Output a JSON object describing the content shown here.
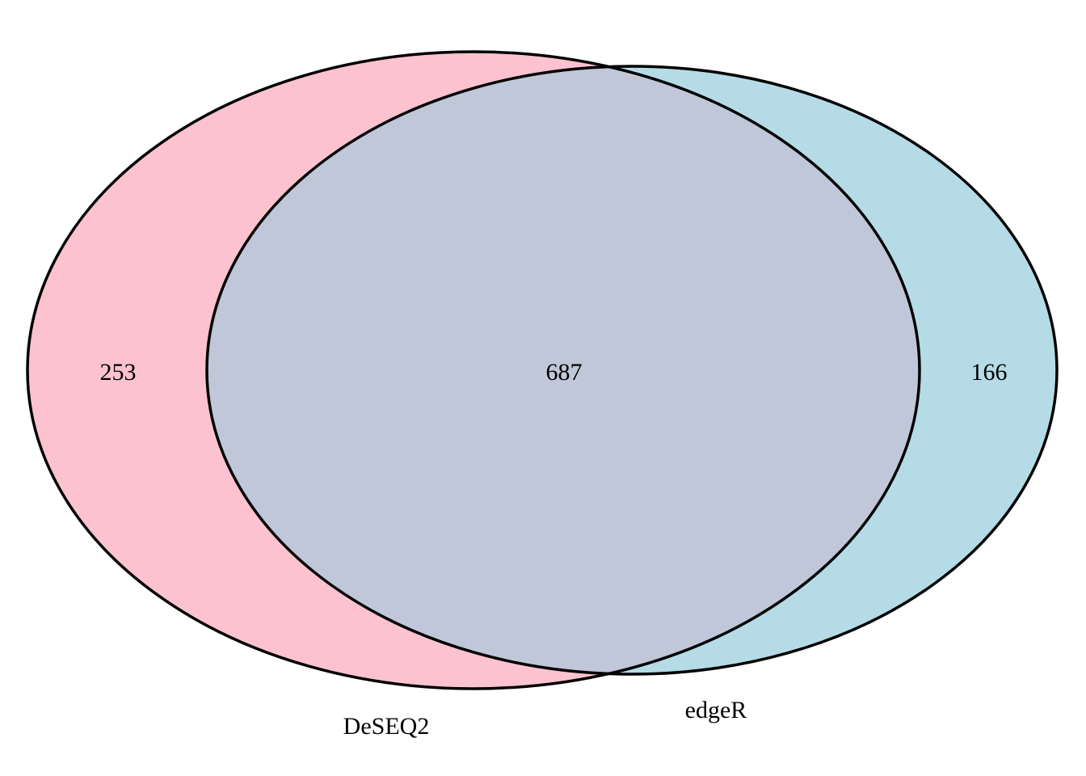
{
  "diagram": {
    "type": "venn",
    "sets": [
      {
        "name": "DeSEQ2",
        "color": "#FCC2CF"
      },
      {
        "name": "edgeR",
        "color": "#B5DBE6"
      }
    ],
    "overlap_color": "#C0C7D8",
    "outline_color": "#000000",
    "regions": {
      "only_a": "253",
      "both": "687",
      "only_b": "166"
    }
  }
}
